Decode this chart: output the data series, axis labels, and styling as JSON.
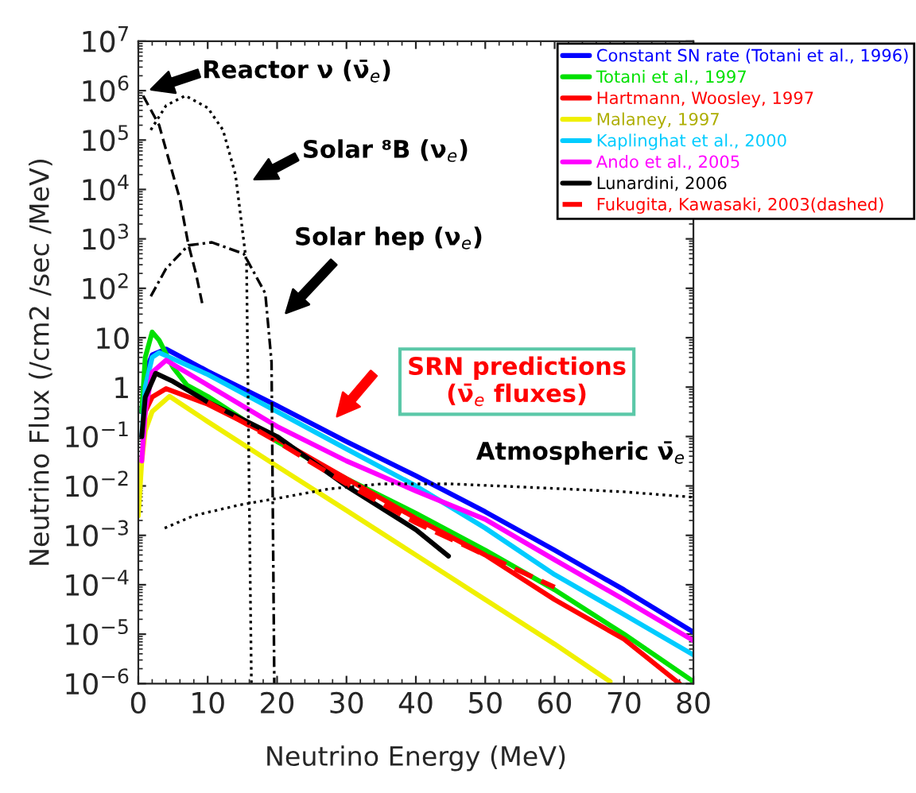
{
  "chart_data": {
    "type": "line",
    "xlabel": "Neutrino Energy (MeV)",
    "ylabel": "Neutrino Flux (/cm2 /sec /MeV)",
    "log": "y",
    "grid": false,
    "legend": "top right",
    "xlim": [
      0,
      80
    ],
    "xticks": [
      0,
      10,
      20,
      30,
      40,
      50,
      60,
      70,
      80
    ],
    "ylim": [
      1e-06,
      10000000.0
    ],
    "yticks": [
      {
        "value": 1e-06,
        "label": "10$^{−6}$"
      },
      {
        "value": 1e-05,
        "label": "10$^{−5}$"
      },
      {
        "value": 0.0001,
        "label": "10$^{−4}$"
      },
      {
        "value": 0.001,
        "label": "10$^{−3}$"
      },
      {
        "value": 0.01,
        "label": "10$^{−2}$"
      },
      {
        "value": 0.1,
        "label": "10$^{−1}$"
      },
      1,
      10,
      {
        "value": 100,
        "label": "10$^{2}$"
      },
      {
        "value": 1000,
        "label": "10$^{3}$"
      },
      {
        "value": 10000,
        "label": "10$^{4}$"
      },
      {
        "value": 100000,
        "label": "10$^{5}$"
      },
      {
        "value": 1000000,
        "label": "10$^{6}$"
      },
      {
        "value": 10000000,
        "label": "10$^{7}$"
      }
    ],
    "series": [
      {
        "name": "Constant SN rate (Totani et al., 1996)",
        "color": "#0000ff",
        "line_style": "solid",
        "x": [
          0.5,
          1,
          2,
          4,
          10,
          20,
          30,
          40,
          50,
          60,
          70,
          80
        ],
        "values": [
          0.32,
          2.0,
          4.5,
          5.9,
          2.1,
          0.42,
          0.079,
          0.016,
          0.003,
          0.0005,
          7.9e-05,
          1.1e-05
        ]
      },
      {
        "name": "Totani et al., 1997",
        "color": "#00e000",
        "line_style": "solid",
        "x": [
          0.5,
          1,
          2,
          3,
          5,
          7,
          10,
          20,
          30,
          40,
          50,
          60,
          70,
          80
        ],
        "values": [
          0.32,
          4.0,
          13,
          8.9,
          2.5,
          1.1,
          0.65,
          0.079,
          0.014,
          0.0028,
          0.0005,
          7.9e-05,
          1e-05,
          1.1e-06
        ]
      },
      {
        "name": "Hartmann, Woosley, 1997",
        "color": "#ff0000",
        "line_style": "solid",
        "x": [
          0.5,
          1,
          2,
          4,
          10,
          20,
          30,
          40,
          50,
          60,
          70,
          78
        ],
        "values": [
          0.1,
          0.32,
          0.63,
          0.93,
          0.45,
          0.089,
          0.014,
          0.0022,
          0.0004,
          5e-05,
          7.9e-06,
          1e-06
        ]
      },
      {
        "name": "Malaney, 1997",
        "color": "#f0f000",
        "line_style": "solid",
        "x": [
          0,
          0.5,
          1,
          2,
          4.5,
          10,
          20,
          30,
          40,
          50,
          60,
          68
        ],
        "values": [
          0.0025,
          0.032,
          0.13,
          0.32,
          0.65,
          0.2,
          0.025,
          0.0032,
          0.0004,
          5e-05,
          6.3e-06,
          1.1e-06
        ]
      },
      {
        "name": "Kaplinghat et al., 2000",
        "color": "#00ccff",
        "line_style": "solid",
        "x": [
          0.5,
          1,
          2,
          3,
          10,
          20,
          30,
          40,
          50,
          60,
          70,
          80
        ],
        "values": [
          0.1,
          1,
          4.0,
          5.0,
          1.8,
          0.32,
          0.056,
          0.01,
          0.0014,
          0.00016,
          2.5e-05,
          3.8e-06
        ]
      },
      {
        "name": "Ando et al., 2005",
        "color": "#ff00ff",
        "line_style": "solid",
        "x": [
          0.5,
          1,
          2,
          4,
          10,
          20,
          30,
          40,
          50,
          60,
          70,
          80
        ],
        "values": [
          0.032,
          0.32,
          2.0,
          3.5,
          1.1,
          0.16,
          0.032,
          0.0079,
          0.0021,
          0.00032,
          5e-05,
          7.4e-06
        ]
      },
      {
        "name": "Lunardini, 2006",
        "color": "#000000",
        "line_style": "solid",
        "x": [
          0.5,
          1,
          2.5,
          5,
          10,
          20,
          30,
          40,
          44.7
        ],
        "values": [
          0.1,
          0.63,
          1.9,
          1.3,
          0.5,
          0.1,
          0.01,
          0.0013,
          0.00038
        ]
      },
      {
        "name": "Fukugita, Kawasaki, 2003(dashed)",
        "color": "#ff0000",
        "line_style": "dashed",
        "x": [
          10,
          20,
          30,
          40,
          50,
          60
        ],
        "values": [
          0.5,
          0.079,
          0.011,
          0.0018,
          0.0004,
          8.9e-05
        ]
      },
      {
        "color": "#000000",
        "line_style": "dashed",
        "x": [
          0.7,
          3,
          6,
          7.2,
          8.3,
          9.2
        ],
        "values": [
          790000,
          200000,
          6300,
          790,
          200,
          50
        ]
      },
      {
        "color": "#000000",
        "line_style": "dotted",
        "x": [
          1.8,
          4,
          6.8,
          10,
          12.2,
          14,
          15.6,
          16.3
        ],
        "values": [
          160000,
          500000,
          790000,
          450000,
          160000,
          20000,
          320,
          1e-06
        ]
      },
      {
        "color": "#000000",
        "line_style": "dashdot",
        "x": [
          1.8,
          4,
          7.2,
          10.6,
          15.2,
          18.3,
          19.2,
          19.6
        ],
        "values": [
          69,
          250,
          740,
          850,
          500,
          79,
          3.2,
          1e-06
        ]
      },
      {
        "color": "#000000",
        "line_style": "dotted",
        "x": [
          3.8,
          8,
          14.5,
          20,
          27.5,
          35,
          45,
          60,
          70,
          80
        ],
        "values": [
          0.0014,
          0.0025,
          0.0041,
          0.0056,
          0.0087,
          0.011,
          0.011,
          0.0089,
          0.0076,
          0.0059
        ]
      }
    ],
    "annotations": [
      "Reactor ν (ν̄$_{e}$)",
      "Solar ⁸B (ν$_{e}$)",
      "Solar hep (ν$_{e}$)",
      "SRN predictions\n(ν̄$_{e}$ fluxes)",
      "Atmospheric ν̄$_{e}$"
    ]
  }
}
